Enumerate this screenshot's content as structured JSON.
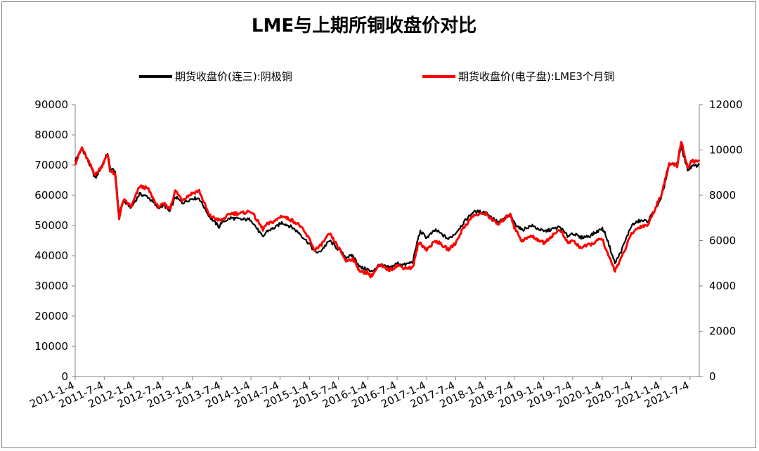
{
  "chart_data": {
    "type": "line",
    "title": "LME与上期所铜收盘价对比",
    "legend_position": "top",
    "grid": false,
    "x_tick_labels": [
      "2011-1-4",
      "2011-7-4",
      "2012-1-4",
      "2012-7-4",
      "2013-1-4",
      "2013-7-4",
      "2014-1-4",
      "2014-7-4",
      "2015-1-4",
      "2015-7-4",
      "2016-1-4",
      "2016-7-4",
      "2017-1-4",
      "2017-7-4",
      "2018-1-4",
      "2018-7-4",
      "2019-1-4",
      "2019-7-4",
      "2020-1-4",
      "2020-7-4",
      "2021-1-4",
      "2021-7-4"
    ],
    "x_range": [
      "2011-01-04",
      "2021-08-31"
    ],
    "y_left": {
      "min": 0,
      "max": 90000,
      "ticks": [
        0,
        10000,
        20000,
        30000,
        40000,
        50000,
        60000,
        70000,
        80000,
        90000
      ]
    },
    "y_right": {
      "min": 0,
      "max": 12000,
      "ticks": [
        0,
        2000,
        4000,
        6000,
        8000,
        10000,
        12000
      ]
    },
    "series": [
      {
        "name": "期货收盘价(连三):阴极铜",
        "axis": "left",
        "color": "#000000",
        "points": [
          [
            "2011-01-04",
            71500
          ],
          [
            "2011-02-15",
            75500
          ],
          [
            "2011-03-20",
            72000
          ],
          [
            "2011-05-10",
            65500
          ],
          [
            "2011-06-20",
            70000
          ],
          [
            "2011-07-25",
            74000
          ],
          [
            "2011-08-10",
            69000
          ],
          [
            "2011-09-10",
            68000
          ],
          [
            "2011-10-05",
            54000
          ],
          [
            "2011-11-01",
            58000
          ],
          [
            "2011-12-20",
            56000
          ],
          [
            "2012-02-10",
            60500
          ],
          [
            "2012-04-01",
            59500
          ],
          [
            "2012-06-01",
            56000
          ],
          [
            "2012-07-15",
            56500
          ],
          [
            "2012-08-15",
            54500
          ],
          [
            "2012-09-20",
            59500
          ],
          [
            "2012-11-01",
            57500
          ],
          [
            "2013-01-04",
            59000
          ],
          [
            "2013-02-15",
            59000
          ],
          [
            "2013-04-20",
            53000
          ],
          [
            "2013-06-20",
            49500
          ],
          [
            "2013-07-04",
            51000
          ],
          [
            "2013-09-01",
            52500
          ],
          [
            "2013-11-01",
            52000
          ],
          [
            "2014-01-04",
            52000
          ],
          [
            "2014-03-20",
            46000
          ],
          [
            "2014-04-10",
            48000
          ],
          [
            "2014-06-10",
            49500
          ],
          [
            "2014-07-15",
            51000
          ],
          [
            "2014-09-15",
            49500
          ],
          [
            "2014-11-01",
            47500
          ],
          [
            "2015-01-10",
            43500
          ],
          [
            "2015-02-01",
            41500
          ],
          [
            "2015-03-05",
            41000
          ],
          [
            "2015-05-10",
            45000
          ],
          [
            "2015-07-04",
            42000
          ],
          [
            "2015-08-20",
            39500
          ],
          [
            "2015-10-01",
            40000
          ],
          [
            "2015-11-20",
            36000
          ],
          [
            "2016-01-04",
            35500
          ],
          [
            "2016-01-20",
            34500
          ],
          [
            "2016-03-15",
            37000
          ],
          [
            "2016-05-20",
            36000
          ],
          [
            "2016-07-04",
            37500
          ],
          [
            "2016-08-20",
            37000
          ],
          [
            "2016-10-10",
            38000
          ],
          [
            "2016-11-10",
            45500
          ],
          [
            "2016-11-25",
            48000
          ],
          [
            "2017-01-04",
            46000
          ],
          [
            "2017-03-01",
            48500
          ],
          [
            "2017-05-20",
            45500
          ],
          [
            "2017-07-04",
            47500
          ],
          [
            "2017-08-15",
            50500
          ],
          [
            "2017-10-20",
            54500
          ],
          [
            "2018-01-04",
            54500
          ],
          [
            "2018-03-25",
            51000
          ],
          [
            "2018-06-10",
            53500
          ],
          [
            "2018-07-04",
            51000
          ],
          [
            "2018-08-20",
            48500
          ],
          [
            "2018-10-20",
            50000
          ],
          [
            "2019-01-04",
            48000
          ],
          [
            "2019-04-15",
            49500
          ],
          [
            "2019-06-01",
            46500
          ],
          [
            "2019-07-04",
            47500
          ],
          [
            "2019-08-20",
            46000
          ],
          [
            "2019-10-15",
            46500
          ],
          [
            "2020-01-04",
            49000
          ],
          [
            "2020-01-25",
            47000
          ],
          [
            "2020-03-23",
            37500
          ],
          [
            "2020-05-01",
            41500
          ],
          [
            "2020-07-04",
            50000
          ],
          [
            "2020-08-20",
            51500
          ],
          [
            "2020-10-15",
            51500
          ],
          [
            "2021-01-04",
            58500
          ],
          [
            "2021-02-25",
            70000
          ],
          [
            "2021-04-15",
            70500
          ],
          [
            "2021-05-10",
            76000
          ],
          [
            "2021-06-20",
            68500
          ],
          [
            "2021-07-15",
            69500
          ],
          [
            "2021-08-31",
            70000
          ]
        ]
      },
      {
        "name": "期货收盘价(电子盘):LME3个月铜",
        "axis": "right",
        "color": "#ff0000",
        "points": [
          [
            "2011-01-04",
            9400
          ],
          [
            "2011-02-15",
            10100
          ],
          [
            "2011-03-20",
            9600
          ],
          [
            "2011-05-10",
            8900
          ],
          [
            "2011-06-20",
            9300
          ],
          [
            "2011-07-25",
            9800
          ],
          [
            "2011-08-10",
            9100
          ],
          [
            "2011-09-10",
            8900
          ],
          [
            "2011-10-05",
            7000
          ],
          [
            "2011-11-01",
            7800
          ],
          [
            "2011-12-20",
            7500
          ],
          [
            "2012-02-10",
            8400
          ],
          [
            "2012-04-01",
            8300
          ],
          [
            "2012-06-01",
            7500
          ],
          [
            "2012-07-15",
            7600
          ],
          [
            "2012-08-15",
            7400
          ],
          [
            "2012-09-20",
            8200
          ],
          [
            "2012-11-01",
            7800
          ],
          [
            "2013-01-04",
            8100
          ],
          [
            "2013-02-15",
            8200
          ],
          [
            "2013-04-20",
            7100
          ],
          [
            "2013-06-20",
            6900
          ],
          [
            "2013-07-04",
            6900
          ],
          [
            "2013-09-01",
            7200
          ],
          [
            "2013-11-01",
            7200
          ],
          [
            "2014-01-04",
            7300
          ],
          [
            "2014-03-20",
            6500
          ],
          [
            "2014-04-10",
            6700
          ],
          [
            "2014-06-10",
            6900
          ],
          [
            "2014-07-15",
            7100
          ],
          [
            "2014-09-15",
            6900
          ],
          [
            "2014-11-01",
            6700
          ],
          [
            "2015-01-10",
            6000
          ],
          [
            "2015-02-01",
            5600
          ],
          [
            "2015-03-05",
            5700
          ],
          [
            "2015-05-10",
            6300
          ],
          [
            "2015-07-04",
            5700
          ],
          [
            "2015-08-20",
            5100
          ],
          [
            "2015-10-01",
            5200
          ],
          [
            "2015-11-20",
            4600
          ],
          [
            "2016-01-04",
            4600
          ],
          [
            "2016-01-20",
            4400
          ],
          [
            "2016-03-15",
            4900
          ],
          [
            "2016-05-20",
            4700
          ],
          [
            "2016-07-04",
            4900
          ],
          [
            "2016-08-20",
            4800
          ],
          [
            "2016-10-10",
            4800
          ],
          [
            "2016-11-10",
            5800
          ],
          [
            "2016-11-25",
            5900
          ],
          [
            "2017-01-04",
            5600
          ],
          [
            "2017-03-01",
            6000
          ],
          [
            "2017-05-20",
            5600
          ],
          [
            "2017-07-04",
            5900
          ],
          [
            "2017-08-15",
            6500
          ],
          [
            "2017-10-20",
            7100
          ],
          [
            "2018-01-04",
            7200
          ],
          [
            "2018-03-25",
            6700
          ],
          [
            "2018-06-10",
            7200
          ],
          [
            "2018-07-04",
            6600
          ],
          [
            "2018-08-20",
            6000
          ],
          [
            "2018-10-20",
            6200
          ],
          [
            "2019-01-04",
            5900
          ],
          [
            "2019-04-15",
            6500
          ],
          [
            "2019-06-01",
            5900
          ],
          [
            "2019-07-04",
            6000
          ],
          [
            "2019-08-20",
            5700
          ],
          [
            "2019-10-15",
            5800
          ],
          [
            "2020-01-04",
            6100
          ],
          [
            "2020-01-25",
            5600
          ],
          [
            "2020-03-23",
            4700
          ],
          [
            "2020-05-01",
            5200
          ],
          [
            "2020-07-04",
            6300
          ],
          [
            "2020-08-20",
            6600
          ],
          [
            "2020-10-15",
            6700
          ],
          [
            "2021-01-04",
            8000
          ],
          [
            "2021-02-25",
            9400
          ],
          [
            "2021-04-15",
            9300
          ],
          [
            "2021-05-10",
            10400
          ],
          [
            "2021-06-20",
            9200
          ],
          [
            "2021-07-15",
            9500
          ],
          [
            "2021-08-31",
            9500
          ]
        ]
      }
    ]
  }
}
